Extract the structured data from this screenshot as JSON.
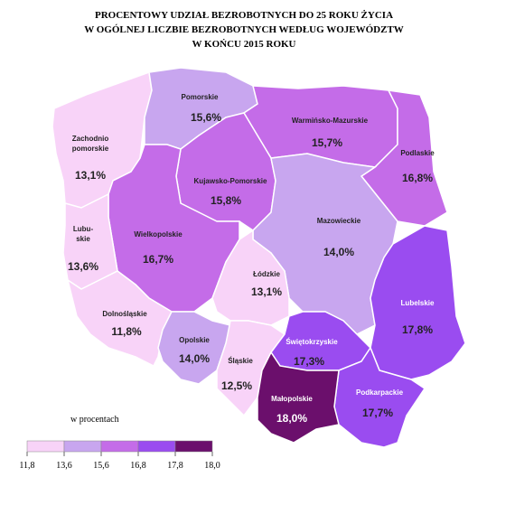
{
  "title": [
    "PROCENTOWY UDZIAŁ BEZROBOTNYCH DO 25 ROKU ŻYCIA",
    "W OGÓLNEJ LICZBIE BEZROBOTNYCH WEDŁUG WOJEWÓDZTW",
    "W KOŃCU 2015 ROKU"
  ],
  "legend": {
    "title": "w procentach",
    "colors": [
      "#f8d3f8",
      "#c8a6ef",
      "#c46ce8",
      "#9a4cf0",
      "#6b0f6c"
    ],
    "ticks": [
      {
        "value": 11.8,
        "label": "11,8"
      },
      {
        "value": 13.6,
        "label": "13,6"
      },
      {
        "value": 15.6,
        "label": "15,6"
      },
      {
        "value": 16.8,
        "label": "16,8"
      },
      {
        "value": 17.8,
        "label": "17,8"
      },
      {
        "value": 18.0,
        "label": "18,0"
      }
    ]
  },
  "regions": [
    {
      "name": [
        "Zachodnio",
        "pomorskie"
      ],
      "value": 13.1,
      "value_label": "13,1%"
    },
    {
      "name": [
        "Pomorskie"
      ],
      "value": 15.6,
      "value_label": "15,6%"
    },
    {
      "name": [
        "Warmińsko-Mazurskie"
      ],
      "value": 15.7,
      "value_label": "15,7%"
    },
    {
      "name": [
        "Podlaskie"
      ],
      "value": 16.8,
      "value_label": "16,8%"
    },
    {
      "name": [
        "Kujawsko-Pomorskie"
      ],
      "value": 15.8,
      "value_label": "15,8%"
    },
    {
      "name": [
        "Wielkopolskie"
      ],
      "value": 16.7,
      "value_label": "16,7%"
    },
    {
      "name": [
        "Mazowieckie"
      ],
      "value": 14.0,
      "value_label": "14,0%"
    },
    {
      "name": [
        "Łódzkie"
      ],
      "value": 13.1,
      "value_label": "13,1%"
    },
    {
      "name": [
        "Lubu-",
        "skie"
      ],
      "value": 13.6,
      "value_label": "13,6%"
    },
    {
      "name": [
        "Dolnośląskie"
      ],
      "value": 11.8,
      "value_label": "11,8%"
    },
    {
      "name": [
        "Opolskie"
      ],
      "value": 14.0,
      "value_label": "14,0%"
    },
    {
      "name": [
        "Śląskie"
      ],
      "value": 12.5,
      "value_label": "12,5%"
    },
    {
      "name": [
        "Świętokrzyskie"
      ],
      "value": 17.3,
      "value_label": "17,3%"
    },
    {
      "name": [
        "Lubelskie"
      ],
      "value": 17.8,
      "value_label": "17,8%"
    },
    {
      "name": [
        "Podkarpackie"
      ],
      "value": 17.7,
      "value_label": "17,7%"
    },
    {
      "name": [
        "Małopolskie"
      ],
      "value": 18.0,
      "value_label": "18,0%"
    }
  ]
}
